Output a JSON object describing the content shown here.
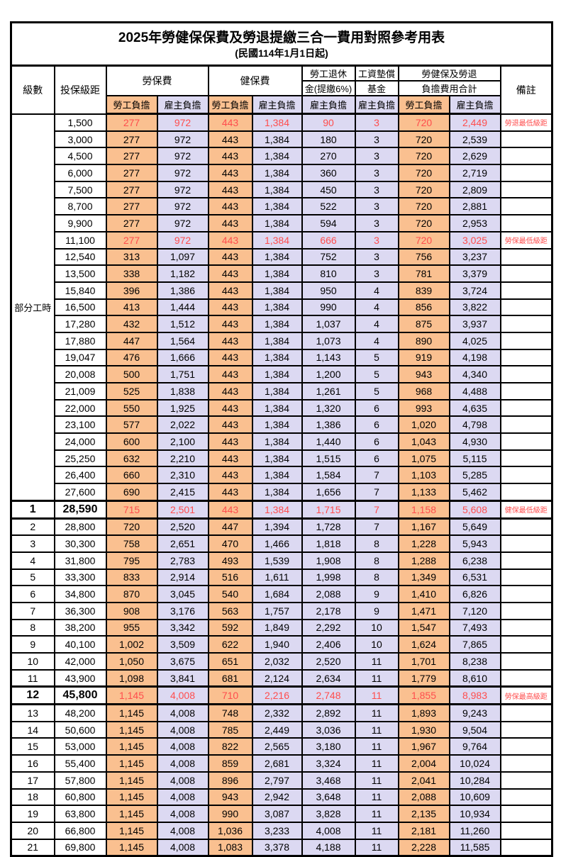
{
  "title": "2025年勞健保保費及勞退提繳三合一費用對照參考用表",
  "subtitle": "(民國114年1月1日起)",
  "headers": {
    "level": "級數",
    "bracket": "投保級距",
    "labor_insurance": "勞保費",
    "health_insurance": "健保費",
    "pension_line1": "勞工退休",
    "pension_line2": "金(提繳6%)",
    "wage_fund_line1": "工資墊償",
    "wage_fund_line2": "基金",
    "total_line1": "勞健保及勞退",
    "total_line2": "負擔費用合計",
    "remark": "備註",
    "employee_share": "勞工負擔",
    "employer_share": "雇主負擔"
  },
  "part_time_label": "部分工時",
  "part_time_rowspan": 23,
  "colors": {
    "employee_bg": "#FAC090",
    "employer_bg": "#DCD9F2",
    "highlight_text": "#FF4D4D",
    "remark_text": "#FF5555",
    "grid": "#000000"
  },
  "rows": [
    {
      "level": "",
      "bracket": "1,500",
      "li_emp": "277",
      "li_er": "972",
      "hi_emp": "443",
      "hi_er": "1,384",
      "pension": "90",
      "fund": "3",
      "tot_emp": "720",
      "tot_er": "2,449",
      "remark": "勞退最低級距",
      "red": true,
      "emph": false
    },
    {
      "level": "",
      "bracket": "3,000",
      "li_emp": "277",
      "li_er": "972",
      "hi_emp": "443",
      "hi_er": "1,384",
      "pension": "180",
      "fund": "3",
      "tot_emp": "720",
      "tot_er": "2,539",
      "remark": "",
      "red": false,
      "emph": false
    },
    {
      "level": "",
      "bracket": "4,500",
      "li_emp": "277",
      "li_er": "972",
      "hi_emp": "443",
      "hi_er": "1,384",
      "pension": "270",
      "fund": "3",
      "tot_emp": "720",
      "tot_er": "2,629",
      "remark": "",
      "red": false,
      "emph": false
    },
    {
      "level": "",
      "bracket": "6,000",
      "li_emp": "277",
      "li_er": "972",
      "hi_emp": "443",
      "hi_er": "1,384",
      "pension": "360",
      "fund": "3",
      "tot_emp": "720",
      "tot_er": "2,719",
      "remark": "",
      "red": false,
      "emph": false
    },
    {
      "level": "",
      "bracket": "7,500",
      "li_emp": "277",
      "li_er": "972",
      "hi_emp": "443",
      "hi_er": "1,384",
      "pension": "450",
      "fund": "3",
      "tot_emp": "720",
      "tot_er": "2,809",
      "remark": "",
      "red": false,
      "emph": false
    },
    {
      "level": "",
      "bracket": "8,700",
      "li_emp": "277",
      "li_er": "972",
      "hi_emp": "443",
      "hi_er": "1,384",
      "pension": "522",
      "fund": "3",
      "tot_emp": "720",
      "tot_er": "2,881",
      "remark": "",
      "red": false,
      "emph": false
    },
    {
      "level": "",
      "bracket": "9,900",
      "li_emp": "277",
      "li_er": "972",
      "hi_emp": "443",
      "hi_er": "1,384",
      "pension": "594",
      "fund": "3",
      "tot_emp": "720",
      "tot_er": "2,953",
      "remark": "",
      "red": false,
      "emph": false
    },
    {
      "level": "",
      "bracket": "11,100",
      "li_emp": "277",
      "li_er": "972",
      "hi_emp": "443",
      "hi_er": "1,384",
      "pension": "666",
      "fund": "3",
      "tot_emp": "720",
      "tot_er": "3,025",
      "remark": "勞保最低級距",
      "red": true,
      "emph": false
    },
    {
      "level": "",
      "bracket": "12,540",
      "li_emp": "313",
      "li_er": "1,097",
      "hi_emp": "443",
      "hi_er": "1,384",
      "pension": "752",
      "fund": "3",
      "tot_emp": "756",
      "tot_er": "3,237",
      "remark": "",
      "red": false,
      "emph": false
    },
    {
      "level": "",
      "bracket": "13,500",
      "li_emp": "338",
      "li_er": "1,182",
      "hi_emp": "443",
      "hi_er": "1,384",
      "pension": "810",
      "fund": "3",
      "tot_emp": "781",
      "tot_er": "3,379",
      "remark": "",
      "red": false,
      "emph": false
    },
    {
      "level": "",
      "bracket": "15,840",
      "li_emp": "396",
      "li_er": "1,386",
      "hi_emp": "443",
      "hi_er": "1,384",
      "pension": "950",
      "fund": "4",
      "tot_emp": "839",
      "tot_er": "3,724",
      "remark": "",
      "red": false,
      "emph": false
    },
    {
      "level": "",
      "bracket": "16,500",
      "li_emp": "413",
      "li_er": "1,444",
      "hi_emp": "443",
      "hi_er": "1,384",
      "pension": "990",
      "fund": "4",
      "tot_emp": "856",
      "tot_er": "3,822",
      "remark": "",
      "red": false,
      "emph": false
    },
    {
      "level": "",
      "bracket": "17,280",
      "li_emp": "432",
      "li_er": "1,512",
      "hi_emp": "443",
      "hi_er": "1,384",
      "pension": "1,037",
      "fund": "4",
      "tot_emp": "875",
      "tot_er": "3,937",
      "remark": "",
      "red": false,
      "emph": false
    },
    {
      "level": "",
      "bracket": "17,880",
      "li_emp": "447",
      "li_er": "1,564",
      "hi_emp": "443",
      "hi_er": "1,384",
      "pension": "1,073",
      "fund": "4",
      "tot_emp": "890",
      "tot_er": "4,025",
      "remark": "",
      "red": false,
      "emph": false
    },
    {
      "level": "",
      "bracket": "19,047",
      "li_emp": "476",
      "li_er": "1,666",
      "hi_emp": "443",
      "hi_er": "1,384",
      "pension": "1,143",
      "fund": "5",
      "tot_emp": "919",
      "tot_er": "4,198",
      "remark": "",
      "red": false,
      "emph": false
    },
    {
      "level": "",
      "bracket": "20,008",
      "li_emp": "500",
      "li_er": "1,751",
      "hi_emp": "443",
      "hi_er": "1,384",
      "pension": "1,200",
      "fund": "5",
      "tot_emp": "943",
      "tot_er": "4,340",
      "remark": "",
      "red": false,
      "emph": false
    },
    {
      "level": "",
      "bracket": "21,009",
      "li_emp": "525",
      "li_er": "1,838",
      "hi_emp": "443",
      "hi_er": "1,384",
      "pension": "1,261",
      "fund": "5",
      "tot_emp": "968",
      "tot_er": "4,488",
      "remark": "",
      "red": false,
      "emph": false
    },
    {
      "level": "",
      "bracket": "22,000",
      "li_emp": "550",
      "li_er": "1,925",
      "hi_emp": "443",
      "hi_er": "1,384",
      "pension": "1,320",
      "fund": "6",
      "tot_emp": "993",
      "tot_er": "4,635",
      "remark": "",
      "red": false,
      "emph": false
    },
    {
      "level": "",
      "bracket": "23,100",
      "li_emp": "577",
      "li_er": "2,022",
      "hi_emp": "443",
      "hi_er": "1,384",
      "pension": "1,386",
      "fund": "6",
      "tot_emp": "1,020",
      "tot_er": "4,798",
      "remark": "",
      "red": false,
      "emph": false
    },
    {
      "level": "",
      "bracket": "24,000",
      "li_emp": "600",
      "li_er": "2,100",
      "hi_emp": "443",
      "hi_er": "1,384",
      "pension": "1,440",
      "fund": "6",
      "tot_emp": "1,043",
      "tot_er": "4,930",
      "remark": "",
      "red": false,
      "emph": false
    },
    {
      "level": "",
      "bracket": "25,250",
      "li_emp": "632",
      "li_er": "2,210",
      "hi_emp": "443",
      "hi_er": "1,384",
      "pension": "1,515",
      "fund": "6",
      "tot_emp": "1,075",
      "tot_er": "5,115",
      "remark": "",
      "red": false,
      "emph": false
    },
    {
      "level": "",
      "bracket": "26,400",
      "li_emp": "660",
      "li_er": "2,310",
      "hi_emp": "443",
      "hi_er": "1,384",
      "pension": "1,584",
      "fund": "7",
      "tot_emp": "1,103",
      "tot_er": "5,285",
      "remark": "",
      "red": false,
      "emph": false
    },
    {
      "level": "",
      "bracket": "27,600",
      "li_emp": "690",
      "li_er": "2,415",
      "hi_emp": "443",
      "hi_er": "1,384",
      "pension": "1,656",
      "fund": "7",
      "tot_emp": "1,133",
      "tot_er": "5,462",
      "remark": "",
      "red": false,
      "emph": false
    },
    {
      "level": "1",
      "bracket": "28,590",
      "li_emp": "715",
      "li_er": "2,501",
      "hi_emp": "443",
      "hi_er": "1,384",
      "pension": "1,715",
      "fund": "7",
      "tot_emp": "1,158",
      "tot_er": "5,608",
      "remark": "健保最低級距",
      "red": true,
      "emph": true
    },
    {
      "level": "2",
      "bracket": "28,800",
      "li_emp": "720",
      "li_er": "2,520",
      "hi_emp": "447",
      "hi_er": "1,394",
      "pension": "1,728",
      "fund": "7",
      "tot_emp": "1,167",
      "tot_er": "5,649",
      "remark": "",
      "red": false,
      "emph": false
    },
    {
      "level": "3",
      "bracket": "30,300",
      "li_emp": "758",
      "li_er": "2,651",
      "hi_emp": "470",
      "hi_er": "1,466",
      "pension": "1,818",
      "fund": "8",
      "tot_emp": "1,228",
      "tot_er": "5,943",
      "remark": "",
      "red": false,
      "emph": false
    },
    {
      "level": "4",
      "bracket": "31,800",
      "li_emp": "795",
      "li_er": "2,783",
      "hi_emp": "493",
      "hi_er": "1,539",
      "pension": "1,908",
      "fund": "8",
      "tot_emp": "1,288",
      "tot_er": "6,238",
      "remark": "",
      "red": false,
      "emph": false
    },
    {
      "level": "5",
      "bracket": "33,300",
      "li_emp": "833",
      "li_er": "2,914",
      "hi_emp": "516",
      "hi_er": "1,611",
      "pension": "1,998",
      "fund": "8",
      "tot_emp": "1,349",
      "tot_er": "6,531",
      "remark": "",
      "red": false,
      "emph": false
    },
    {
      "level": "6",
      "bracket": "34,800",
      "li_emp": "870",
      "li_er": "3,045",
      "hi_emp": "540",
      "hi_er": "1,684",
      "pension": "2,088",
      "fund": "9",
      "tot_emp": "1,410",
      "tot_er": "6,826",
      "remark": "",
      "red": false,
      "emph": false
    },
    {
      "level": "7",
      "bracket": "36,300",
      "li_emp": "908",
      "li_er": "3,176",
      "hi_emp": "563",
      "hi_er": "1,757",
      "pension": "2,178",
      "fund": "9",
      "tot_emp": "1,471",
      "tot_er": "7,120",
      "remark": "",
      "red": false,
      "emph": false
    },
    {
      "level": "8",
      "bracket": "38,200",
      "li_emp": "955",
      "li_er": "3,342",
      "hi_emp": "592",
      "hi_er": "1,849",
      "pension": "2,292",
      "fund": "10",
      "tot_emp": "1,547",
      "tot_er": "7,493",
      "remark": "",
      "red": false,
      "emph": false
    },
    {
      "level": "9",
      "bracket": "40,100",
      "li_emp": "1,002",
      "li_er": "3,509",
      "hi_emp": "622",
      "hi_er": "1,940",
      "pension": "2,406",
      "fund": "10",
      "tot_emp": "1,624",
      "tot_er": "7,865",
      "remark": "",
      "red": false,
      "emph": false
    },
    {
      "level": "10",
      "bracket": "42,000",
      "li_emp": "1,050",
      "li_er": "3,675",
      "hi_emp": "651",
      "hi_er": "2,032",
      "pension": "2,520",
      "fund": "11",
      "tot_emp": "1,701",
      "tot_er": "8,238",
      "remark": "",
      "red": false,
      "emph": false
    },
    {
      "level": "11",
      "bracket": "43,900",
      "li_emp": "1,098",
      "li_er": "3,841",
      "hi_emp": "681",
      "hi_er": "2,124",
      "pension": "2,634",
      "fund": "11",
      "tot_emp": "1,779",
      "tot_er": "8,610",
      "remark": "",
      "red": false,
      "emph": false
    },
    {
      "level": "12",
      "bracket": "45,800",
      "li_emp": "1,145",
      "li_er": "4,008",
      "hi_emp": "710",
      "hi_er": "2,216",
      "pension": "2,748",
      "fund": "11",
      "tot_emp": "1,855",
      "tot_er": "8,983",
      "remark": "勞保最高級距",
      "red": true,
      "emph": true
    },
    {
      "level": "13",
      "bracket": "48,200",
      "li_emp": "1,145",
      "li_er": "4,008",
      "hi_emp": "748",
      "hi_er": "2,332",
      "pension": "2,892",
      "fund": "11",
      "tot_emp": "1,893",
      "tot_er": "9,243",
      "remark": "",
      "red": false,
      "emph": false
    },
    {
      "level": "14",
      "bracket": "50,600",
      "li_emp": "1,145",
      "li_er": "4,008",
      "hi_emp": "785",
      "hi_er": "2,449",
      "pension": "3,036",
      "fund": "11",
      "tot_emp": "1,930",
      "tot_er": "9,504",
      "remark": "",
      "red": false,
      "emph": false
    },
    {
      "level": "15",
      "bracket": "53,000",
      "li_emp": "1,145",
      "li_er": "4,008",
      "hi_emp": "822",
      "hi_er": "2,565",
      "pension": "3,180",
      "fund": "11",
      "tot_emp": "1,967",
      "tot_er": "9,764",
      "remark": "",
      "red": false,
      "emph": false
    },
    {
      "level": "16",
      "bracket": "55,400",
      "li_emp": "1,145",
      "li_er": "4,008",
      "hi_emp": "859",
      "hi_er": "2,681",
      "pension": "3,324",
      "fund": "11",
      "tot_emp": "2,004",
      "tot_er": "10,024",
      "remark": "",
      "red": false,
      "emph": false
    },
    {
      "level": "17",
      "bracket": "57,800",
      "li_emp": "1,145",
      "li_er": "4,008",
      "hi_emp": "896",
      "hi_er": "2,797",
      "pension": "3,468",
      "fund": "11",
      "tot_emp": "2,041",
      "tot_er": "10,284",
      "remark": "",
      "red": false,
      "emph": false
    },
    {
      "level": "18",
      "bracket": "60,800",
      "li_emp": "1,145",
      "li_er": "4,008",
      "hi_emp": "943",
      "hi_er": "2,942",
      "pension": "3,648",
      "fund": "11",
      "tot_emp": "2,088",
      "tot_er": "10,609",
      "remark": "",
      "red": false,
      "emph": false
    },
    {
      "level": "19",
      "bracket": "63,800",
      "li_emp": "1,145",
      "li_er": "4,008",
      "hi_emp": "990",
      "hi_er": "3,087",
      "pension": "3,828",
      "fund": "11",
      "tot_emp": "2,135",
      "tot_er": "10,934",
      "remark": "",
      "red": false,
      "emph": false
    },
    {
      "level": "20",
      "bracket": "66,800",
      "li_emp": "1,145",
      "li_er": "4,008",
      "hi_emp": "1,036",
      "hi_er": "3,233",
      "pension": "4,008",
      "fund": "11",
      "tot_emp": "2,181",
      "tot_er": "11,260",
      "remark": "",
      "red": false,
      "emph": false
    },
    {
      "level": "21",
      "bracket": "69,800",
      "li_emp": "1,145",
      "li_er": "4,008",
      "hi_emp": "1,083",
      "hi_er": "3,378",
      "pension": "4,188",
      "fund": "11",
      "tot_emp": "2,228",
      "tot_er": "11,585",
      "remark": "",
      "red": false,
      "emph": false
    }
  ]
}
